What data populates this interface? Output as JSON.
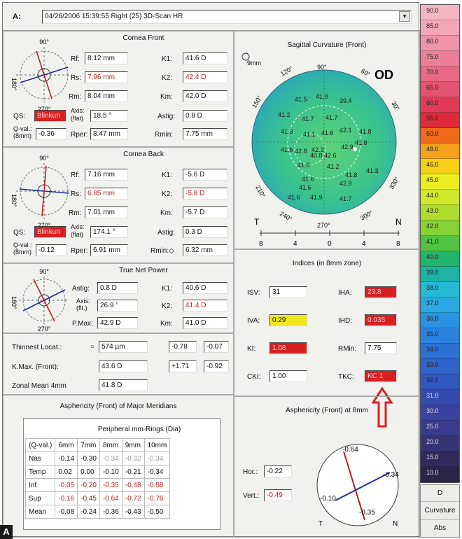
{
  "header": {
    "label": "A:",
    "exam": "04/26/2006  15:39:55  Right  (25) 3D-Scan HR",
    "dropdown_arrow": "▾"
  },
  "cornea_front": {
    "title": "Cornea Front",
    "axis_top": "90°",
    "axis_bottom": "270°",
    "axis_left": "180°",
    "rf_label": "Rf:",
    "rf": "8.12 mm",
    "rs_label": "Rs:",
    "rs": "7.96 mm",
    "rm_label": "Rm:",
    "rm": "8.04 mm",
    "k1_label": "K1:",
    "k1": "41.6 D",
    "k2_label": "K2:",
    "k2": "42.4 D",
    "km_label": "Km:",
    "km": "42.0 D",
    "qs_label": "QS:",
    "qs": "Blinkun",
    "axis_label": "Axis:\n(flat)",
    "axis": "18.5 °",
    "astig_label": "Astig:",
    "astig": "0.8 D",
    "qval_label": "Q-val.:\n(8mm)",
    "qval": "-0.36",
    "rper_label": "Rper:",
    "rper": "8.47 mm",
    "rmin_label": "Rmin:",
    "rmin": "7.75 mm"
  },
  "cornea_back": {
    "title": "Cornea Back",
    "axis_top": "90°",
    "axis_bottom": "270°",
    "axis_left": "180°",
    "rf": "7.16 mm",
    "rs": "6.85 mm",
    "rm": "7.01 mm",
    "k1": "-5.6 D",
    "k2": "-5.8 D",
    "km": "-5.7 D",
    "qs": "Blinkun",
    "axis": "174.1 °",
    "astig": "0.3 D",
    "qval": "-0.12",
    "rper": "6.91 mm",
    "rmin_label": "Rmin:◇",
    "rmin": "6.32 mm"
  },
  "true_net": {
    "title": "True Net Power",
    "axis_top": "90°",
    "axis_bottom": "270°",
    "axis_left": "180°",
    "astig_label": "Astig:",
    "astig": "0.8 D",
    "axis_label": "Axis:\n(flt.)",
    "axis": "26.9 °",
    "pmax_label": "P.Max:",
    "pmax": "42.9 D",
    "k1": "40.6 D",
    "k2": "41.4 D",
    "km": "41.0 D"
  },
  "thinnest": {
    "label": "Thinnest Locat.:",
    "symbol": "○",
    "value": "574 µm",
    "x": "-0.78",
    "y": "-0.07"
  },
  "kmax": {
    "label": "K.Max. (Front):",
    "value": "43.6 D",
    "x": "+1.71",
    "y": "-0.92"
  },
  "zonal": {
    "label": "Zonal Mean 4mm",
    "value": "41.8 D"
  },
  "sagittal": {
    "title": "Sagittal Curvature (Front)",
    "eye": "OD",
    "zoom": "9mm",
    "deg_90": "90°",
    "deg_120": "120°",
    "deg_60": "60°",
    "deg_150": "150°",
    "deg_30": "30°",
    "deg_210": "210°",
    "deg_330": "330°",
    "deg_240": "240°",
    "deg_300": "300°",
    "deg_270": "270°",
    "t": "T",
    "n": "N",
    "scale": [
      "8",
      "4",
      "0",
      "4",
      "8"
    ],
    "map_values": [
      "41.5",
      "41.0",
      "39.4",
      "41.2",
      "41.7",
      "41.7",
      "41.3",
      "41.1",
      "41.6",
      "42.1",
      "41.8",
      "42.8",
      "41.6",
      "42.3",
      "42.9",
      "41.8",
      "40.8",
      "42.6",
      "41.6",
      "41.2",
      "41.6",
      "42.9",
      "41.6",
      "41.8",
      "41.3",
      "41.9",
      "41.6",
      "41.7"
    ]
  },
  "indices": {
    "title": "Indices (in 8mm zone)",
    "isv_label": "ISV:",
    "isv": "31",
    "iva_label": "IVA:",
    "iva": "0.29",
    "ki_label": "KI:",
    "ki": "1.08",
    "cki_label": "CKI:",
    "cki": "1.00",
    "iha_label": "IHA:",
    "iha": "23.8",
    "ihd_label": "IHD:",
    "ihd": "0.035",
    "rmin_label": "RMin:",
    "rmin": "7.75",
    "tkc_label": "TKC:",
    "tkc": "KC 1"
  },
  "asph_meridians": {
    "title": "Asphericity (Front) of Major Meridians",
    "subtitle": "Peripheral mm-Rings (Dia)",
    "headers": [
      "(Q-val.)",
      "6mm",
      "7mm",
      "8mm",
      "9mm",
      "10mm"
    ],
    "rows": [
      [
        "Nas",
        "-0.14",
        "-0.30",
        "-0.34",
        "-0.32",
        "-0.34"
      ],
      [
        "Temp",
        "0.02",
        "0.00",
        "-0.10",
        "-0.21",
        "-0.34"
      ],
      [
        "Inf",
        "-0.05",
        "-0.20",
        "-0.35",
        "-0.48",
        "-0.58"
      ],
      [
        "Sup",
        "-0.16",
        "-0.45",
        "-0.64",
        "-0.72",
        "-0.76"
      ],
      [
        "Mean",
        "-0.08",
        "-0.24",
        "-0.36",
        "-0.43",
        "-0.50"
      ]
    ]
  },
  "asph_8mm": {
    "title": "Asphericity (Front) at 8mm",
    "hor_label": "Hor.:",
    "hor": "-0.22",
    "vert_label": "Vert.:",
    "vert": "-0.49",
    "top": "-0.64",
    "right": "-0.34",
    "left": "-0.10",
    "bottom": "-0.35",
    "t": "T",
    "n": "N"
  },
  "scale_bar": {
    "labels": [
      "90.0",
      "85.0",
      "80.0",
      "75.0",
      "70.0",
      "65.0",
      "60.0",
      "55.0",
      "50.0",
      "48.0",
      "46.0",
      "45.0",
      "44.0",
      "43.0",
      "42.0",
      "41.0",
      "40.0",
      "39.0",
      "38.0",
      "37.0",
      "36.0",
      "35.0",
      "34.0",
      "33.0",
      "32.0",
      "31.0",
      "30.0",
      "25.0",
      "20.0",
      "15.0",
      "10.0"
    ],
    "colors": [
      "#f5b6c4",
      "#f3a6b8",
      "#f094ab",
      "#ec7e98",
      "#e86a86",
      "#e45470",
      "#e03c58",
      "#dc2a3a",
      "#f06a1e",
      "#f4a019",
      "#f4cf13",
      "#eaed22",
      "#cfe92c",
      "#aedd2f",
      "#86d234",
      "#52c242",
      "#22b46a",
      "#1eb3a4",
      "#25b9d2",
      "#29a8e2",
      "#2a92e2",
      "#2a82dd",
      "#2d70d3",
      "#3063c9",
      "#3257bf",
      "#364aae",
      "#39429e",
      "#3a3b8e",
      "#373475",
      "#302b5c",
      "#2a2448"
    ],
    "buttons": [
      "D",
      "Curvature",
      "Abs"
    ]
  },
  "corner_label": "A"
}
